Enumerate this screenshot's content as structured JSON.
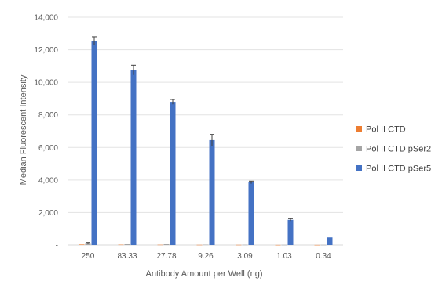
{
  "chart_data": {
    "type": "bar",
    "xlabel": "Antibody Amount per Well (ng)",
    "ylabel": "Median Fluorescent Intensity",
    "ylim": [
      0,
      14000
    ],
    "yticks": [
      0,
      2000,
      4000,
      6000,
      8000,
      10000,
      12000,
      14000
    ],
    "ytick_labels": [
      "-",
      "2,000",
      "4,000",
      "6,000",
      "8,000",
      "10,000",
      "12,000",
      "14,000"
    ],
    "categories": [
      "250",
      "83.33",
      "27.78",
      "9.26",
      "3.09",
      "1.03",
      "0.34"
    ],
    "grid": true,
    "legend_position": "right",
    "series": [
      {
        "name": "Pol II CTD",
        "color": "#ED7D31",
        "values": [
          30,
          20,
          15,
          10,
          10,
          5,
          5
        ],
        "errors": [
          0,
          0,
          0,
          0,
          0,
          0,
          0
        ]
      },
      {
        "name": "Pol II CTD pSer2",
        "color": "#A5A5A5",
        "values": [
          130,
          60,
          60,
          20,
          15,
          10,
          10
        ],
        "errors": [
          30,
          0,
          0,
          0,
          0,
          0,
          0
        ]
      },
      {
        "name": "Pol II CTD pSer5",
        "color": "#4472C4",
        "values": [
          12550,
          10750,
          8800,
          6450,
          3850,
          1550,
          470
        ],
        "errors": [
          250,
          300,
          150,
          350,
          80,
          70,
          0
        ]
      }
    ]
  }
}
